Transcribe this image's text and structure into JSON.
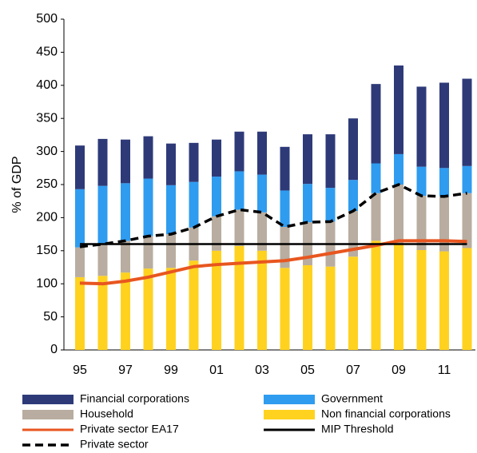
{
  "chart_data": {
    "type": "bar",
    "stacked": true,
    "ylabel": "% of GDP",
    "categories": [
      "95",
      null,
      "97",
      null,
      "99",
      null,
      "01",
      null,
      "03",
      null,
      "05",
      null,
      "07",
      null,
      "09",
      null,
      "11",
      null
    ],
    "ylim": [
      0,
      500
    ],
    "yticks": [
      0,
      50,
      100,
      150,
      200,
      250,
      300,
      350,
      400,
      450,
      500
    ],
    "series": [
      {
        "name": "Financial corporations",
        "type": "bar",
        "color": "#2e3a78",
        "values": [
          66,
          71,
          66,
          64,
          63,
          59,
          56,
          60,
          65,
          66,
          75,
          81,
          93,
          120,
          134,
          121,
          129,
          132
        ]
      },
      {
        "name": "Government",
        "type": "bar",
        "color": "#2f9cf0",
        "values": [
          88,
          88,
          87,
          87,
          74,
          69,
          60,
          58,
          57,
          55,
          58,
          51,
          47,
          45,
          46,
          44,
          43,
          41
        ]
      },
      {
        "name": "Household",
        "type": "bar",
        "color": "#b8ada0",
        "values": [
          45,
          48,
          48,
          49,
          51,
          50,
          52,
          55,
          58,
          62,
          65,
          68,
          69,
          72,
          90,
          82,
          83,
          83
        ]
      },
      {
        "name": "Non financial corporations",
        "type": "bar",
        "color": "#ffd21f",
        "values": [
          110,
          112,
          117,
          123,
          124,
          135,
          150,
          157,
          150,
          124,
          128,
          126,
          141,
          165,
          160,
          151,
          149,
          154
        ]
      },
      {
        "name": "Private sector EA17",
        "type": "line",
        "color": "#e8561f",
        "values": [
          101,
          100,
          104,
          110,
          118,
          126,
          129,
          131,
          133,
          135,
          140,
          146,
          152,
          158,
          165,
          165,
          165,
          164
        ]
      },
      {
        "name": "MIP Threshold",
        "type": "line",
        "color": "#000000",
        "values": [
          160,
          160,
          160,
          160,
          160,
          160,
          160,
          160,
          160,
          160,
          160,
          160,
          160,
          160,
          160,
          160,
          160,
          160
        ]
      },
      {
        "name": "Private sector",
        "type": "line",
        "color": "#000000",
        "dashed": true,
        "values": [
          156,
          160,
          165,
          172,
          175,
          185,
          202,
          212,
          208,
          186,
          193,
          194,
          210,
          237,
          250,
          233,
          232,
          237
        ]
      }
    ]
  }
}
